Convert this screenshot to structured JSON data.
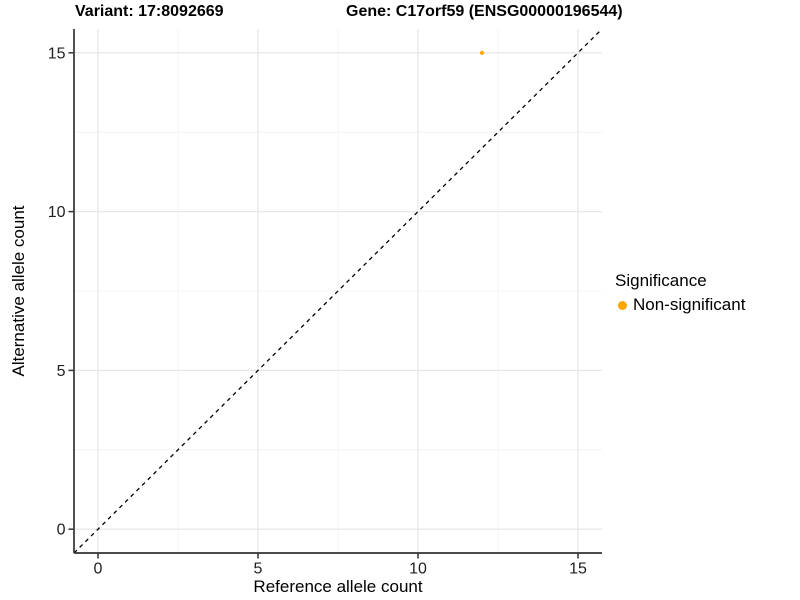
{
  "titles": {
    "variant": "Variant: 17:8092669",
    "gene": "Gene: C17orf59 (ENSG00000196544)"
  },
  "legend": {
    "title": "Significance",
    "items": [
      {
        "label": "Non-significant",
        "color": "#FFA500"
      }
    ]
  },
  "colors": {
    "background": "#FFFFFF",
    "grid_major": "#E8E8E8",
    "grid_minor": "#F4F4F4",
    "axis_line": "#333333",
    "tick_mark": "#333333",
    "tick_text": "#212121",
    "title_text": "#000000",
    "dashed_line": "#000000",
    "point": "#FFA500"
  },
  "chart_data": {
    "type": "scatter",
    "titles": [
      "Variant: 17:8092669",
      "Gene: C17orf59 (ENSG00000196544)"
    ],
    "xlabel": "Reference allele count",
    "ylabel": "Alternative allele count",
    "xlim": [
      -0.75,
      15.75
    ],
    "ylim": [
      -0.75,
      15.75
    ],
    "x_major_ticks": [
      0,
      5,
      10,
      15
    ],
    "x_minor_ticks": [
      2.5,
      7.5,
      12.5
    ],
    "y_major_ticks": [
      0,
      5,
      10,
      15
    ],
    "y_minor_ticks": [
      2.5,
      7.5,
      12.5
    ],
    "grid": "major+minor",
    "legend_position": "right",
    "series": [
      {
        "name": "Non-significant",
        "color": "#FFA500",
        "points": [
          {
            "x": 12,
            "y": 15
          }
        ]
      }
    ],
    "identity_line": {
      "style": "dashed",
      "color": "#000000",
      "from": [
        -0.75,
        -0.75
      ],
      "to": [
        15.75,
        15.75
      ]
    }
  }
}
